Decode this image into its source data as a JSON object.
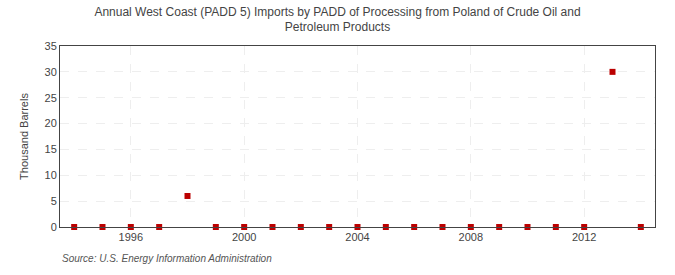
{
  "chart_data": {
    "type": "scatter",
    "title": "Annual West Coast (PADD 5) Imports by PADD of Processing from Poland of Crude Oil and\nPetroleum Products",
    "ylabel": "Thousand Barrels",
    "annotations": [
      "Source: U.S. Energy Information Administration"
    ],
    "x": [
      1994,
      1995,
      1996,
      1997,
      1998,
      1999,
      2000,
      2001,
      2002,
      2003,
      2004,
      2005,
      2006,
      2007,
      2008,
      2009,
      2010,
      2011,
      2012,
      2013,
      2014
    ],
    "values": [
      0,
      0,
      0,
      0,
      6,
      0,
      0,
      0,
      0,
      0,
      0,
      0,
      0,
      0,
      0,
      0,
      0,
      0,
      0,
      30,
      0
    ],
    "color": "#bb0000",
    "marker": "square",
    "xlim": [
      1993.5,
      2014.5
    ],
    "ylim": [
      0,
      35
    ],
    "xticks": [
      1996,
      2000,
      2004,
      2008,
      2012
    ],
    "yticks": [
      0,
      5,
      10,
      15,
      20,
      25,
      30,
      35
    ],
    "grid": true
  }
}
